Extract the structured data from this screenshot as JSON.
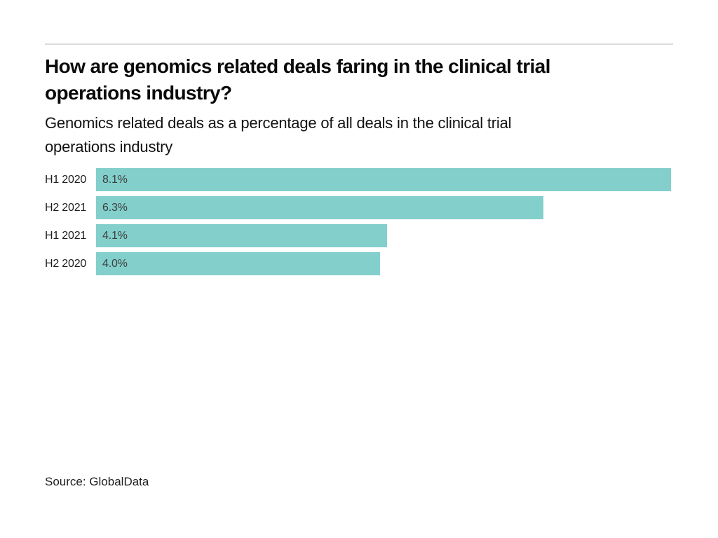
{
  "page": {
    "background": "#ffffff",
    "divider_color": "#dcdcdc"
  },
  "header": {
    "title_lines": [
      "How are genomics related deals faring in the clinical trial",
      "operations industry?"
    ],
    "subtitle_lines": [
      "Genomics related deals as a percentage of all deals in the clinical trial",
      "operations industry"
    ]
  },
  "chart_data": {
    "type": "bar",
    "orientation": "horizontal",
    "title": "How are genomics related deals faring in the clinical trial operations industry?",
    "subtitle": "Genomics related deals as a percentage of all deals in the clinical trial operations industry",
    "categories": [
      "H1 2020",
      "H2 2021",
      "H1 2021",
      "H2 2020"
    ],
    "values": [
      8.1,
      6.3,
      4.1,
      4.0
    ],
    "value_labels": [
      "8.1%",
      "6.3%",
      "4.1%",
      "4.0%"
    ],
    "xlabel": "",
    "ylabel": "",
    "xlim": [
      0,
      8.1
    ],
    "grid": false,
    "legend": false,
    "bar_color": "#82cfcb",
    "value_label_color": "#3f3f3f",
    "category_label_color": "#1c1c1c"
  },
  "footer": {
    "source": "Source: GlobalData"
  }
}
